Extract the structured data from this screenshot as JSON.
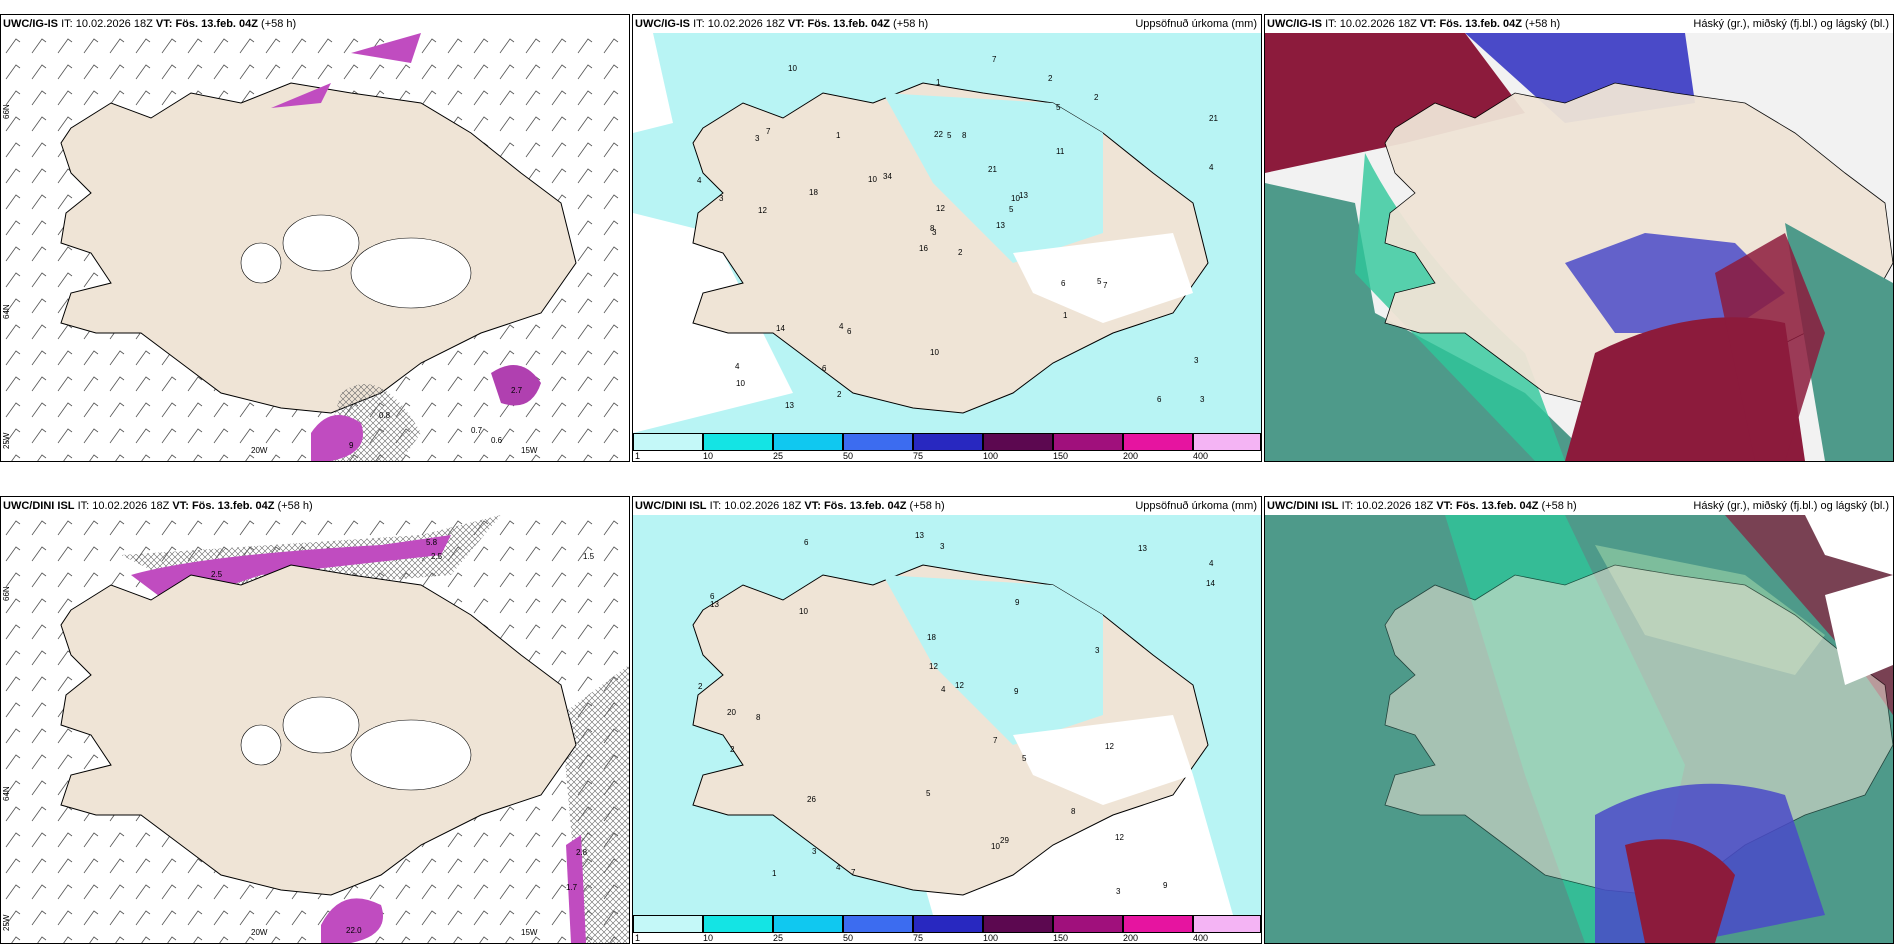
{
  "rows": [
    {
      "model": "UWC/IG-IS",
      "it_label": "IT:",
      "it_value": "10.02.2026 18Z",
      "vt_label": "VT:",
      "vt_value": "Fös. 13.feb. 04Z",
      "lead": "(+58 h)",
      "precip_labels": [
        "2",
        "3",
        "3",
        "4",
        "10",
        "6",
        "2",
        "8",
        "5",
        "13",
        "10",
        "3",
        "12",
        "21",
        "16",
        "11",
        "13",
        "22",
        "21",
        "14",
        "34",
        "10",
        "6",
        "5",
        "13",
        "7",
        "7",
        "1",
        "3",
        "6",
        "4",
        "8",
        "10",
        "12",
        "1",
        "2",
        "4",
        "6",
        "3",
        "5",
        "7",
        "10",
        "18",
        "1",
        "2",
        "4",
        "5"
      ],
      "wind_labels": [
        "0.8",
        "9",
        "2.7",
        "0.7",
        "0.6"
      ]
    },
    {
      "model": "UWC/DINI ISL",
      "it_label": "IT:",
      "it_value": "10.02.2026 18Z",
      "vt_label": "VT:",
      "vt_value": "Fös. 13.feb. 04Z",
      "lead": "(+58 h)",
      "precip_labels": [
        "2",
        "3",
        "3",
        "4",
        "6",
        "9",
        "8",
        "9",
        "18",
        "13",
        "12",
        "12",
        "13",
        "13",
        "10",
        "26",
        "29",
        "20",
        "7",
        "5",
        "8",
        "12",
        "14",
        "12",
        "3",
        "4",
        "5",
        "6",
        "7",
        "10",
        "2",
        "3",
        "9",
        "1",
        "4"
      ],
      "wind_labels": [
        "5.8",
        "2.5",
        "1.5",
        "2.5",
        "2.8",
        "1.7",
        "22.0"
      ]
    }
  ],
  "precip_title": "Uppsöfnuð úrkoma (mm)",
  "cloud_title": "Háský (gr.), miðský (fj.bl.) og lágský (bl.)",
  "colorbar": {
    "labels": [
      "1",
      "10",
      "25",
      "50",
      "75",
      "100",
      "150",
      "200",
      "400"
    ],
    "colors": [
      "#c4f8f8",
      "#14e4e4",
      "#10c8f0",
      "#3c6cf0",
      "#2828c0",
      "#5c0850",
      "#a0107c",
      "#e614a0",
      "#f4b4f4"
    ]
  },
  "axis_labels": {
    "lon_20": "20W",
    "lon_15": "15W",
    "lat_66": "66N",
    "lat_64": "64N",
    "lat_25": "25W"
  },
  "colors": {
    "land": "#efe4d6",
    "sea_precip": "#b8f4f4",
    "deep_green": "#4e9a8a",
    "teal": "#2ec79a",
    "red": "#8c1b3c",
    "blue": "#4a4ac8"
  }
}
